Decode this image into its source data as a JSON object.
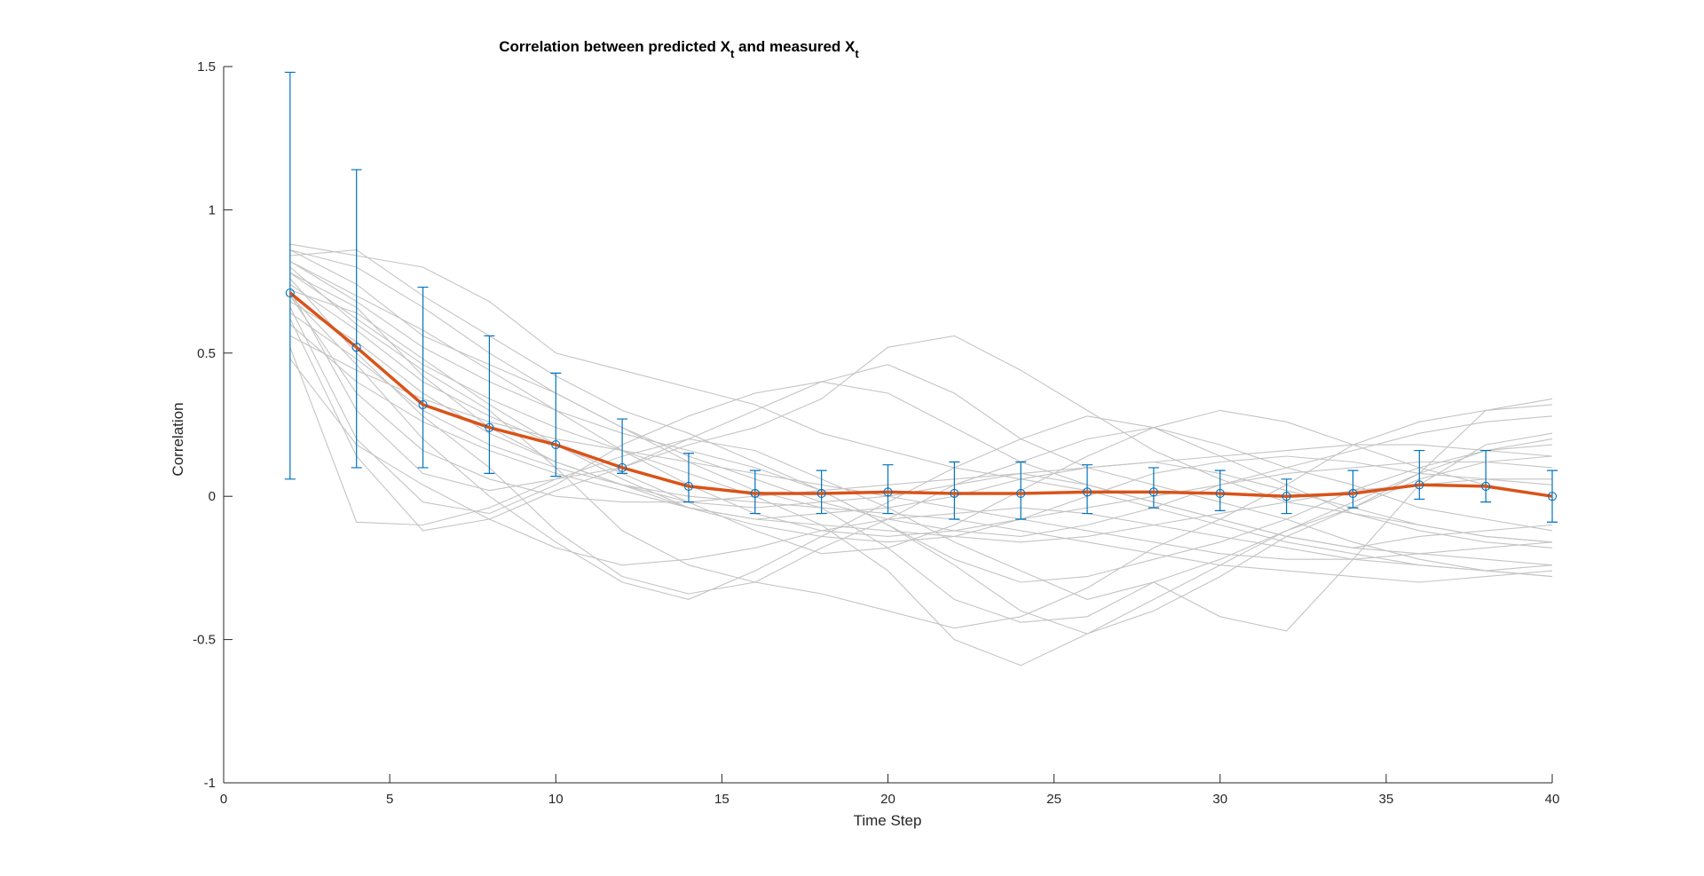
{
  "chart_data": {
    "type": "line",
    "title": {
      "main": "Correlation between predicted X",
      "sub1": "t",
      "middle": " and measured X",
      "sub2": "t"
    },
    "xlabel": "Time Step",
    "ylabel": "Correlation",
    "xlim": [
      0,
      40
    ],
    "ylim": [
      -1,
      1.5
    ],
    "xticks": [
      0,
      5,
      10,
      15,
      20,
      25,
      30,
      35,
      40
    ],
    "yticks": [
      -1,
      -0.5,
      0,
      0.5,
      1,
      1.5
    ],
    "xtick_labels": [
      "0",
      "5",
      "10",
      "15",
      "20",
      "25",
      "30",
      "35",
      "40"
    ],
    "ytick_labels": [
      "-1",
      "-0.5",
      "0",
      "0.5",
      "1",
      "1.5"
    ],
    "grid": false,
    "box": false,
    "colors": {
      "mean_line": "#d95319",
      "error_bars": "#0072bd",
      "individual_lines": "#c4c4c4",
      "axes": "#262626"
    },
    "x": [
      2,
      4,
      6,
      8,
      10,
      12,
      14,
      16,
      18,
      20,
      22,
      24,
      26,
      28,
      30,
      32,
      34,
      36,
      38,
      40
    ],
    "mean": {
      "values": [
        0.71,
        0.52,
        0.32,
        0.24,
        0.18,
        0.1,
        0.035,
        0.01,
        0.01,
        0.015,
        0.01,
        0.01,
        0.015,
        0.015,
        0.01,
        0.0,
        0.01,
        0.04,
        0.035,
        0.0
      ]
    },
    "error_bars": {
      "upper": [
        1.48,
        1.14,
        0.73,
        0.56,
        0.43,
        0.27,
        0.15,
        0.09,
        0.09,
        0.11,
        0.12,
        0.12,
        0.11,
        0.1,
        0.09,
        0.06,
        0.09,
        0.16,
        0.16,
        0.09
      ],
      "lower": [
        0.06,
        0.1,
        0.1,
        0.08,
        0.07,
        0.08,
        -0.02,
        -0.06,
        -0.06,
        -0.06,
        -0.08,
        -0.08,
        -0.06,
        -0.04,
        -0.05,
        -0.06,
        -0.04,
        -0.01,
        -0.02,
        -0.09
      ]
    },
    "individual_series": [
      [
        0.88,
        0.84,
        0.8,
        0.68,
        0.5,
        0.44,
        0.38,
        0.32,
        0.22,
        0.16,
        0.1,
        0.06,
        0.02,
        -0.04,
        -0.1,
        -0.16,
        -0.2,
        -0.24,
        -0.26,
        -0.28
      ],
      [
        0.84,
        0.86,
        0.7,
        0.56,
        0.42,
        0.3,
        0.22,
        0.12,
        0.02,
        -0.1,
        -0.22,
        -0.3,
        -0.28,
        -0.22,
        -0.16,
        -0.08,
        0.02,
        0.1,
        0.16,
        0.18
      ],
      [
        0.86,
        0.74,
        0.56,
        0.46,
        0.36,
        0.24,
        0.12,
        0.02,
        -0.04,
        -0.18,
        -0.36,
        -0.44,
        -0.42,
        -0.3,
        -0.22,
        -0.12,
        -0.04,
        0.08,
        0.3,
        0.34
      ],
      [
        0.72,
        0.3,
        0.08,
        0.02,
        0.06,
        0.1,
        0.2,
        0.3,
        0.4,
        0.46,
        0.36,
        0.2,
        0.1,
        0.04,
        -0.02,
        -0.08,
        -0.16,
        -0.22,
        -0.26,
        -0.24
      ],
      [
        0.8,
        0.6,
        0.44,
        0.3,
        0.1,
        -0.12,
        -0.24,
        -0.3,
        -0.34,
        -0.4,
        -0.46,
        -0.42,
        -0.32,
        -0.18,
        -0.08,
        0.04,
        0.18,
        0.26,
        0.3,
        0.32
      ],
      [
        0.66,
        0.2,
        -0.02,
        -0.06,
        0.04,
        0.18,
        0.28,
        0.36,
        0.4,
        0.36,
        0.24,
        0.12,
        0.04,
        -0.02,
        -0.08,
        -0.14,
        -0.18,
        -0.14,
        -0.12,
        -0.1
      ],
      [
        0.62,
        0.14,
        -0.12,
        -0.08,
        0.02,
        0.1,
        0.18,
        0.24,
        0.34,
        0.52,
        0.56,
        0.44,
        0.3,
        0.16,
        0.06,
        -0.02,
        -0.06,
        -0.1,
        -0.14,
        -0.16
      ],
      [
        0.52,
        -0.09,
        -0.1,
        -0.04,
        0.06,
        0.14,
        0.2,
        0.16,
        0.06,
        -0.04,
        -0.16,
        -0.26,
        -0.36,
        -0.3,
        -0.42,
        -0.47,
        -0.22,
        0.04,
        0.18,
        0.22
      ],
      [
        0.76,
        0.5,
        0.28,
        0.1,
        -0.12,
        -0.28,
        -0.34,
        -0.3,
        -0.18,
        -0.08,
        0.04,
        0.12,
        0.2,
        0.24,
        0.18,
        0.1,
        0.04,
        -0.04,
        -0.08,
        -0.12
      ],
      [
        0.7,
        0.46,
        0.2,
        0.0,
        -0.16,
        -0.3,
        -0.36,
        -0.26,
        -0.14,
        -0.02,
        0.1,
        0.2,
        0.28,
        0.24,
        0.14,
        0.04,
        -0.06,
        -0.12,
        -0.16,
        -0.18
      ],
      [
        0.82,
        0.68,
        0.52,
        0.4,
        0.3,
        0.22,
        0.16,
        0.1,
        0.02,
        -0.1,
        -0.24,
        -0.4,
        -0.48,
        -0.4,
        -0.28,
        -0.14,
        -0.04,
        0.06,
        0.12,
        0.14
      ],
      [
        0.78,
        0.62,
        0.46,
        0.34,
        0.24,
        0.16,
        0.08,
        0.0,
        -0.1,
        -0.26,
        -0.5,
        -0.59,
        -0.48,
        -0.36,
        -0.24,
        -0.12,
        -0.02,
        0.08,
        0.16,
        0.2
      ],
      [
        0.74,
        0.58,
        0.4,
        0.28,
        0.18,
        0.08,
        -0.02,
        -0.12,
        -0.2,
        -0.18,
        -0.1,
        0.02,
        0.14,
        0.24,
        0.3,
        0.26,
        0.18,
        0.1,
        0.04,
        0.0
      ],
      [
        0.68,
        0.54,
        0.36,
        0.22,
        0.12,
        0.04,
        -0.04,
        -0.08,
        -0.1,
        -0.12,
        -0.14,
        -0.16,
        -0.14,
        -0.1,
        -0.06,
        -0.02,
        0.02,
        0.04,
        0.06,
        0.04
      ],
      [
        0.6,
        0.4,
        0.26,
        0.16,
        0.08,
        0.02,
        -0.04,
        -0.08,
        -0.06,
        -0.04,
        0.0,
        0.06,
        0.1,
        0.12,
        0.08,
        0.02,
        -0.04,
        -0.1,
        -0.14,
        -0.16
      ],
      [
        0.56,
        0.44,
        0.34,
        0.26,
        0.2,
        0.16,
        0.12,
        0.08,
        0.04,
        0.0,
        -0.04,
        -0.08,
        -0.12,
        -0.16,
        -0.2,
        -0.22,
        -0.22,
        -0.2,
        -0.18,
        -0.16
      ],
      [
        0.72,
        0.64,
        0.48,
        0.32,
        0.18,
        0.06,
        -0.04,
        -0.1,
        -0.14,
        -0.16,
        -0.14,
        -0.08,
        0.0,
        0.08,
        0.12,
        0.14,
        0.12,
        0.08,
        0.06,
        0.06
      ],
      [
        0.82,
        0.7,
        0.58,
        0.44,
        0.3,
        0.16,
        0.04,
        -0.06,
        -0.12,
        -0.14,
        -0.12,
        -0.08,
        -0.04,
        0.0,
        0.04,
        0.08,
        0.1,
        0.12,
        0.12,
        0.1
      ],
      [
        0.64,
        0.48,
        0.3,
        0.18,
        0.1,
        0.04,
        0.0,
        -0.02,
        -0.04,
        -0.06,
        -0.08,
        -0.12,
        -0.16,
        -0.2,
        -0.24,
        -0.26,
        -0.28,
        -0.3,
        -0.28,
        -0.26
      ],
      [
        0.78,
        0.66,
        0.42,
        0.24,
        0.12,
        0.04,
        -0.02,
        -0.04,
        -0.02,
        0.0,
        0.04,
        0.08,
        0.04,
        -0.02,
        -0.08,
        -0.14,
        -0.18,
        -0.2,
        -0.22,
        -0.24
      ],
      [
        0.7,
        0.36,
        0.16,
        0.06,
        0.0,
        -0.02,
        -0.02,
        0.0,
        0.02,
        0.04,
        0.06,
        0.08,
        0.1,
        0.12,
        0.14,
        0.16,
        0.18,
        0.18,
        0.16,
        0.14
      ],
      [
        0.86,
        0.8,
        0.66,
        0.5,
        0.36,
        0.24,
        0.14,
        0.06,
        -0.02,
        -0.08,
        -0.12,
        -0.14,
        -0.1,
        -0.04,
        0.04,
        0.1,
        0.16,
        0.22,
        0.26,
        0.28
      ],
      [
        0.48,
        0.18,
        0.04,
        -0.08,
        -0.18,
        -0.24,
        -0.22,
        -0.18,
        -0.12,
        -0.08,
        -0.06,
        -0.04,
        -0.06,
        -0.1,
        -0.14,
        -0.18,
        -0.22,
        -0.24,
        -0.26,
        -0.28
      ]
    ]
  }
}
